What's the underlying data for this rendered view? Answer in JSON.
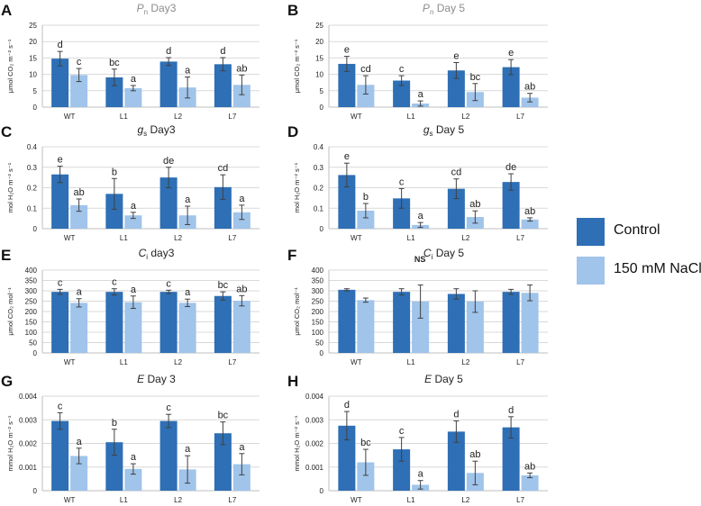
{
  "colors": {
    "control": "#2E6FB5",
    "nacl": "#A0C4EA"
  },
  "legend": {
    "control": "Control",
    "nacl": "150 mM NaCl"
  },
  "chart_data": [
    {
      "id": "A",
      "panel_letter": "A",
      "title_main": "P",
      "title_sub": "n",
      "title_rest": " Day3",
      "title_dim": true,
      "ylabel": "μmol CO₂ m⁻² s⁻¹",
      "type": "bar",
      "ylim": [
        0,
        25
      ],
      "yticks": [
        0,
        5,
        10,
        15,
        20,
        25
      ],
      "ytick_labels": [
        "0",
        "5",
        "10",
        "15",
        "20",
        "25"
      ],
      "categories": [
        "WT",
        "L1",
        "L2",
        "L7"
      ],
      "series": [
        {
          "name": "Control",
          "values": [
            14.8,
            9.1,
            13.9,
            13.1
          ],
          "errors": [
            2.2,
            2.5,
            1.2,
            2.0
          ],
          "letters": [
            "d",
            "bc",
            "d",
            "d"
          ]
        },
        {
          "name": "150 mM NaCl",
          "values": [
            9.8,
            5.8,
            6.0,
            6.8
          ],
          "errors": [
            2.0,
            0.8,
            3.2,
            3.0
          ],
          "letters": [
            "c",
            "a",
            "a",
            "ab"
          ]
        }
      ],
      "annotation": ""
    },
    {
      "id": "B",
      "panel_letter": "B",
      "title_main": "P",
      "title_sub": "n",
      "title_rest": " Day 5",
      "title_dim": true,
      "ylabel": "μmol CO₂ m⁻² s⁻¹",
      "type": "bar",
      "ylim": [
        0,
        25
      ],
      "yticks": [
        0,
        5,
        10,
        15,
        20,
        25
      ],
      "ytick_labels": [
        "0",
        "5",
        "10",
        "15",
        "20",
        "25"
      ],
      "categories": [
        "WT",
        "L1",
        "L2",
        "L7"
      ],
      "series": [
        {
          "name": "Control",
          "values": [
            13.2,
            8.1,
            11.2,
            12.2
          ],
          "errors": [
            2.3,
            1.5,
            2.4,
            2.3
          ],
          "letters": [
            "e",
            "c",
            "e",
            "e"
          ]
        },
        {
          "name": "150 mM NaCl",
          "values": [
            6.8,
            1.1,
            4.6,
            2.9
          ],
          "errors": [
            2.8,
            0.8,
            2.6,
            1.3
          ],
          "letters": [
            "cd",
            "a",
            "bc",
            "ab"
          ]
        }
      ],
      "annotation": ""
    },
    {
      "id": "C",
      "panel_letter": "C",
      "title_main": "g",
      "title_sub": "s",
      "title_rest": " Day3",
      "title_dim": false,
      "ylabel": "mol H₂O m⁻² s⁻¹",
      "type": "bar",
      "ylim": [
        0,
        0.4
      ],
      "yticks": [
        0,
        0.1,
        0.2,
        0.3,
        0.4
      ],
      "ytick_labels": [
        "0",
        "0.1",
        "0.2",
        "0.3",
        "0.4"
      ],
      "categories": [
        "WT",
        "L1",
        "L2",
        "L7"
      ],
      "series": [
        {
          "name": "Control",
          "values": [
            0.265,
            0.17,
            0.25,
            0.203
          ],
          "errors": [
            0.04,
            0.075,
            0.05,
            0.06
          ],
          "letters": [
            "e",
            "b",
            "de",
            "cd"
          ]
        },
        {
          "name": "150 mM NaCl",
          "values": [
            0.115,
            0.065,
            0.065,
            0.08
          ],
          "errors": [
            0.03,
            0.015,
            0.045,
            0.035
          ],
          "letters": [
            "ab",
            "a",
            "a",
            "a"
          ]
        }
      ],
      "annotation": ""
    },
    {
      "id": "D",
      "panel_letter": "D",
      "title_main": "g",
      "title_sub": "s",
      "title_rest": " Day 5",
      "title_dim": false,
      "ylabel": "mol H₂O m⁻² s⁻¹",
      "type": "bar",
      "ylim": [
        0,
        0.4
      ],
      "yticks": [
        0,
        0.1,
        0.2,
        0.3,
        0.4
      ],
      "ytick_labels": [
        "0",
        "0.1",
        "0.2",
        "0.3",
        "0.4"
      ],
      "categories": [
        "WT",
        "L1",
        "L2",
        "L7"
      ],
      "series": [
        {
          "name": "Control",
          "values": [
            0.262,
            0.148,
            0.195,
            0.228
          ],
          "errors": [
            0.058,
            0.048,
            0.048,
            0.04
          ],
          "letters": [
            "e",
            "c",
            "cd",
            "de"
          ]
        },
        {
          "name": "150 mM NaCl",
          "values": [
            0.088,
            0.018,
            0.057,
            0.045
          ],
          "errors": [
            0.035,
            0.012,
            0.03,
            0.008
          ],
          "letters": [
            "b",
            "a",
            "ab",
            "ab"
          ]
        }
      ],
      "annotation": ""
    },
    {
      "id": "E",
      "panel_letter": "E",
      "title_main": "C",
      "title_sub": "i",
      "title_rest": " day3",
      "title_dim": false,
      "ylabel": "μmol CO₂ mol⁻¹",
      "type": "bar",
      "ylim": [
        0,
        400
      ],
      "yticks": [
        0,
        50,
        100,
        150,
        200,
        250,
        300,
        350,
        400
      ],
      "ytick_labels": [
        "0",
        "50",
        "100",
        "150",
        "200",
        "250",
        "300",
        "350",
        "400"
      ],
      "categories": [
        "WT",
        "L1",
        "L2",
        "L7"
      ],
      "series": [
        {
          "name": "Control",
          "values": [
            295,
            295,
            295,
            275
          ],
          "errors": [
            12,
            15,
            8,
            20
          ],
          "letters": [
            "c",
            "c",
            "c",
            "bc"
          ]
        },
        {
          "name": "150 mM NaCl",
          "values": [
            242,
            245,
            242,
            252
          ],
          "errors": [
            20,
            30,
            18,
            25
          ],
          "letters": [
            "a",
            "a",
            "a",
            "ab"
          ]
        }
      ],
      "annotation": ""
    },
    {
      "id": "F",
      "panel_letter": "F",
      "title_main": "C",
      "title_sub": "i",
      "title_rest": " Day 5",
      "title_dim": false,
      "ylabel": "μmol CO₂ mol⁻¹",
      "type": "bar",
      "ylim": [
        0,
        400
      ],
      "yticks": [
        0,
        50,
        100,
        150,
        200,
        250,
        300,
        350,
        400
      ],
      "ytick_labels": [
        "0",
        "50",
        "100",
        "150",
        "200",
        "250",
        "300",
        "350",
        "400"
      ],
      "categories": [
        "WT",
        "L1",
        "L2",
        "L7"
      ],
      "series": [
        {
          "name": "Control",
          "values": [
            305,
            295,
            285,
            295
          ],
          "errors": [
            5,
            15,
            25,
            12
          ],
          "letters": [
            "",
            "",
            "",
            ""
          ]
        },
        {
          "name": "150 mM NaCl",
          "values": [
            255,
            248,
            248,
            290
          ],
          "errors": [
            10,
            80,
            52,
            38
          ],
          "letters": [
            "",
            "",
            "",
            ""
          ]
        }
      ],
      "annotation": "NS"
    },
    {
      "id": "G",
      "panel_letter": "G",
      "title_main": "E",
      "title_sub": "",
      "title_rest": " Day 3",
      "title_dim": false,
      "ylabel": "mmol H₂O m⁻² s⁻¹",
      "type": "bar",
      "ylim": [
        0,
        0.004
      ],
      "yticks": [
        0,
        0.001,
        0.002,
        0.003,
        0.004
      ],
      "ytick_labels": [
        "0",
        "0.001",
        "0.002",
        "0.003",
        "0.004"
      ],
      "categories": [
        "WT",
        "L1",
        "L2",
        "L7"
      ],
      "series": [
        {
          "name": "Control",
          "values": [
            0.00295,
            0.00205,
            0.00295,
            0.00243
          ],
          "errors": [
            0.00035,
            0.00055,
            0.00028,
            0.00048
          ],
          "letters": [
            "c",
            "b",
            "c",
            "bc"
          ]
        },
        {
          "name": "150 mM NaCl",
          "values": [
            0.00147,
            0.00092,
            0.0009,
            0.00112
          ],
          "errors": [
            0.00033,
            0.00022,
            0.00058,
            0.00045
          ],
          "letters": [
            "a",
            "a",
            "a",
            "a"
          ]
        }
      ],
      "annotation": ""
    },
    {
      "id": "H",
      "panel_letter": "H",
      "title_main": "E",
      "title_sub": "",
      "title_rest": " Day 5",
      "title_dim": false,
      "ylabel": "mmol H₂O m⁻² s⁻¹",
      "type": "bar",
      "ylim": [
        0,
        0.004
      ],
      "yticks": [
        0,
        0.001,
        0.002,
        0.003,
        0.004
      ],
      "ytick_labels": [
        "0",
        "0.001",
        "0.002",
        "0.003",
        "0.004"
      ],
      "categories": [
        "WT",
        "L1",
        "L2",
        "L7"
      ],
      "series": [
        {
          "name": "Control",
          "values": [
            0.00275,
            0.00175,
            0.0025,
            0.00268
          ],
          "errors": [
            0.0006,
            0.0005,
            0.00045,
            0.00045
          ],
          "letters": [
            "d",
            "c",
            "d",
            "d"
          ]
        },
        {
          "name": "150 mM NaCl",
          "values": [
            0.0012,
            0.00025,
            0.00075,
            0.00065
          ],
          "errors": [
            0.00055,
            0.00018,
            0.0005,
            0.0001
          ],
          "letters": [
            "bc",
            "a",
            "ab",
            "ab"
          ]
        }
      ],
      "annotation": ""
    }
  ]
}
